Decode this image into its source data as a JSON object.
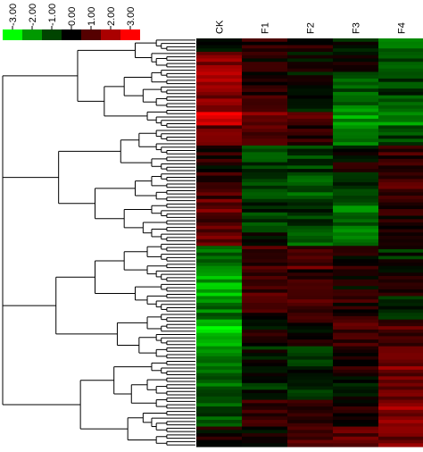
{
  "chart_data": {
    "type": "heatmap",
    "columns": [
      "CK",
      "F1",
      "F2",
      "F3",
      "F4"
    ],
    "color_scale": {
      "ticks": [
        "-3.00",
        "-2.00",
        "-1.00",
        "0.00",
        "1.00",
        "2.00",
        "3.00"
      ],
      "colors": [
        "#00ff00",
        "#009900",
        "#004400",
        "#000000",
        "#550000",
        "#aa0000",
        "#ff0000"
      ],
      "vmin": -3,
      "vmax": 3
    },
    "row_groups": [
      {
        "n": 4,
        "values": [
          -0.3,
          0.4,
          0.2,
          -0.2,
          -1.3
        ]
      },
      {
        "n": 6,
        "values": [
          1.6,
          0.4,
          0.1,
          0.0,
          -1.0
        ]
      },
      {
        "n": 6,
        "values": [
          2.0,
          0.2,
          -0.2,
          -0.8,
          -0.6
        ]
      },
      {
        "n": 6,
        "values": [
          1.5,
          0.6,
          -0.3,
          -1.4,
          -0.8
        ]
      },
      {
        "n": 4,
        "values": [
          2.8,
          1.3,
          0.7,
          -1.8,
          -1.6
        ]
      },
      {
        "n": 6,
        "values": [
          1.1,
          0.8,
          0.5,
          -1.2,
          -0.8
        ]
      },
      {
        "n": 8,
        "values": [
          0.3,
          -0.8,
          -0.6,
          0.1,
          0.6
        ]
      },
      {
        "n": 8,
        "values": [
          0.7,
          -1.0,
          -0.9,
          -0.4,
          0.9
        ]
      },
      {
        "n": 8,
        "values": [
          1.1,
          -0.7,
          -0.7,
          -1.3,
          0.5
        ]
      },
      {
        "n": 6,
        "values": [
          1.3,
          -0.3,
          -0.9,
          -1.6,
          0.6
        ]
      },
      {
        "n": 7,
        "values": [
          -1.4,
          0.7,
          1.0,
          0.3,
          -0.3
        ]
      },
      {
        "n": 8,
        "values": [
          -2.0,
          0.9,
          0.5,
          0.2,
          0.2
        ]
      },
      {
        "n": 7,
        "values": [
          -1.3,
          0.5,
          0.8,
          0.4,
          -0.7
        ]
      },
      {
        "n": 8,
        "values": [
          -2.5,
          0.2,
          0.2,
          0.9,
          0.8
        ]
      },
      {
        "n": 8,
        "values": [
          -1.6,
          -0.3,
          -0.4,
          0.4,
          1.4
        ]
      },
      {
        "n": 8,
        "values": [
          -1.2,
          -0.4,
          -0.3,
          -0.2,
          1.2
        ]
      },
      {
        "n": 8,
        "values": [
          -1.0,
          0.5,
          0.6,
          0.3,
          1.6
        ]
      },
      {
        "n": 6,
        "values": [
          0.2,
          0.3,
          0.7,
          0.9,
          1.3
        ]
      }
    ]
  }
}
